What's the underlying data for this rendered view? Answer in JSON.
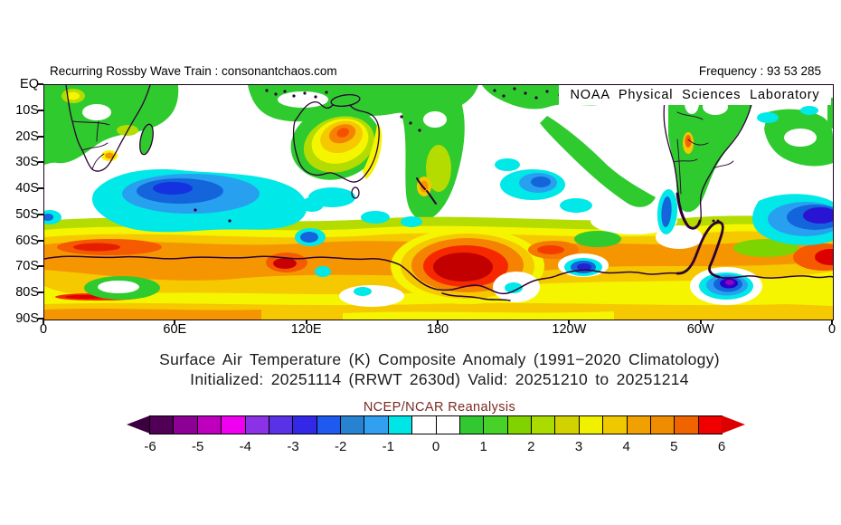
{
  "header": {
    "left": "Recurring Rossby Wave Train : consonantchaos.com",
    "right": "Frequency : 93 53 285"
  },
  "map": {
    "credit": "NOAA Physical Sciences Laboratory",
    "y_axis": {
      "labels": [
        "EQ",
        "10S",
        "20S",
        "30S",
        "40S",
        "50S",
        "60S",
        "70S",
        "80S",
        "90S"
      ]
    },
    "x_axis": {
      "labels": [
        "0",
        "60E",
        "120E",
        "180",
        "120W",
        "60W",
        "0"
      ]
    },
    "anomaly_features": [
      {
        "region": "Indian Ocean 35S-55S",
        "sign": "cold",
        "approx_peak_K": -3
      },
      {
        "region": "central Australia",
        "sign": "warm",
        "approx_peak_K": 4
      },
      {
        "region": "Ross Sea / date line 65S-78S",
        "sign": "warm",
        "approx_peak_K": 6
      },
      {
        "region": "Antarctic circumpolar band 60S-90S",
        "sign": "warm",
        "approx_peak_K": 3
      },
      {
        "region": "Weddell Sea near 60W 78S",
        "sign": "cold",
        "approx_peak_K": -5
      },
      {
        "region": "South Atlantic 45S-60S",
        "sign": "cold",
        "approx_peak_K": -3
      },
      {
        "region": "southern Andes coast",
        "sign": "cold",
        "approx_peak_K": -2
      },
      {
        "region": "tropics and midlatitude bands",
        "sign": "warm",
        "approx_peak_K": 1
      }
    ]
  },
  "titles": {
    "line1": "Surface Air Temperature (K) Composite Anomaly (1991−2020 Climatology)",
    "line2": "Initialized: 20251114 (RRWT 2630d) Valid: 20251210 to 20251214",
    "dataset": "NCEP/NCAR Reanalysis"
  },
  "colorbar": {
    "tick_labels": [
      "-6",
      "-5",
      "-4",
      "-3",
      "-2",
      "-1",
      "0",
      "1",
      "2",
      "3",
      "4",
      "5",
      "6"
    ],
    "segment_colors": [
      "#500055",
      "#8c0096",
      "#be00be",
      "#f000f0",
      "#8c32e6",
      "#5a32e6",
      "#3228e6",
      "#1e5af0",
      "#2882d2",
      "#32a0f0",
      "#00e6e6",
      "#ffffff",
      "#ffffff",
      "#32c832",
      "#46d228",
      "#82d200",
      "#aadc00",
      "#d2d200",
      "#f0f000",
      "#f0c800",
      "#f0a000",
      "#f08c00",
      "#f06400",
      "#f00000"
    ],
    "arrow_left_color": "#3c0041",
    "arrow_right_color": "#dc0000",
    "key_colors": {
      "cold_core": "#1432e0",
      "cyan": "#00e8e8",
      "warm_green": "#2eca2e",
      "yellow": "#f5f500",
      "orange": "#f59600",
      "red_core": "#c30000",
      "coastline": "#2d0033"
    }
  }
}
